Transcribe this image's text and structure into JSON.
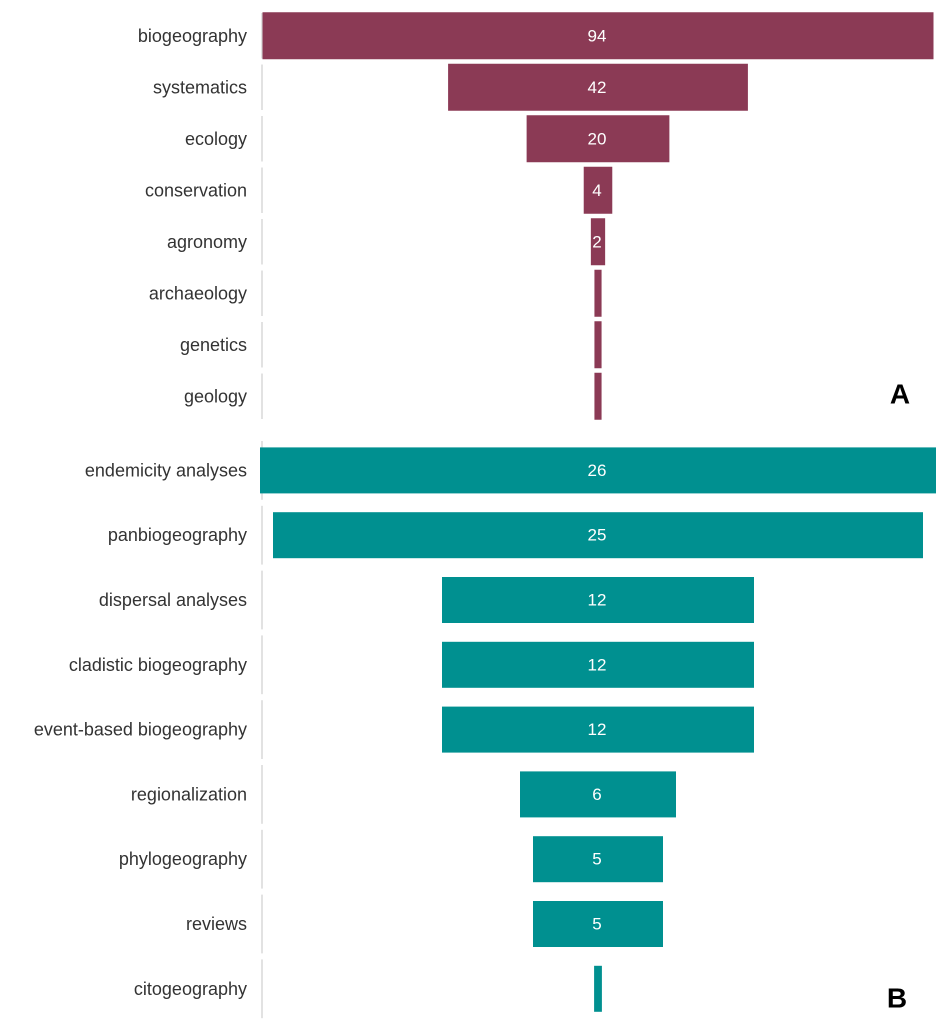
{
  "chart_data": [
    {
      "type": "bar",
      "orientation": "horizontal-centered",
      "panel_label": "A",
      "color": "#8b3a55",
      "categories": [
        "biogeography",
        "systematics",
        "ecology",
        "conservation",
        "agronomy",
        "archaeology",
        "genetics",
        "geology"
      ],
      "values": [
        94,
        42,
        20,
        4,
        2,
        1,
        1,
        1
      ],
      "value_labels": [
        "94",
        "42",
        "20",
        "4",
        "2",
        "",
        "",
        ""
      ]
    },
    {
      "type": "bar",
      "orientation": "horizontal-centered",
      "panel_label": "B",
      "color": "#009090",
      "categories": [
        "endemicity analyses",
        "panbiogeography",
        "dispersal analyses",
        "cladistic biogeography",
        "event-based biogeography",
        "regionalization",
        "phylogeography",
        "reviews",
        "citogeography"
      ],
      "values": [
        26,
        25,
        12,
        12,
        12,
        6,
        5,
        5,
        0.3
      ],
      "value_labels": [
        "26",
        "25",
        "12",
        "12",
        "12",
        "6",
        "5",
        "5",
        ""
      ]
    }
  ]
}
